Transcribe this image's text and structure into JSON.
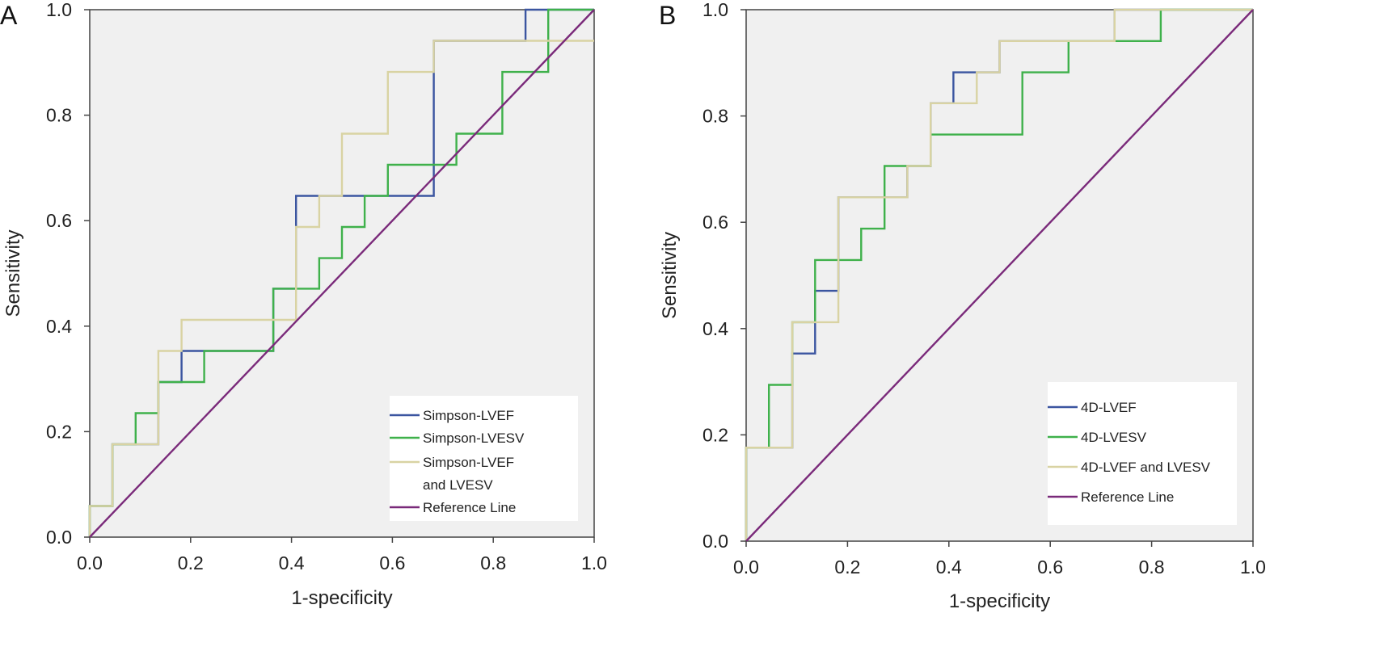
{
  "chart_data": [
    {
      "panel_label": "A",
      "type": "line",
      "xlabel": "1-specificity",
      "ylabel": "Sensitivity",
      "xlim": [
        0,
        1
      ],
      "ylim": [
        0,
        1
      ],
      "xticks": [
        "0.0",
        "0.2",
        "0.4",
        "0.6",
        "0.8",
        "1.0"
      ],
      "yticks": [
        "0.0",
        "0.2",
        "0.4",
        "0.6",
        "0.8",
        "1.0"
      ],
      "grid": false,
      "legend_position": "bottom-right",
      "series": [
        {
          "name": "Simpson-LVEF",
          "color": "#3b55a0",
          "x": [
            0,
            0,
            0.045,
            0.045,
            0.136,
            0.136,
            0.182,
            0.182,
            0.364,
            0.364,
            0.409,
            0.409,
            0.682,
            0.682,
            0.864,
            0.864,
            1
          ],
          "y": [
            0,
            0.059,
            0.059,
            0.176,
            0.176,
            0.294,
            0.294,
            0.353,
            0.353,
            0.471,
            0.471,
            0.647,
            0.647,
            0.941,
            0.941,
            1,
            1
          ]
        },
        {
          "name": "Simpson-LVESV",
          "color": "#3fb14b",
          "x": [
            0,
            0,
            0.045,
            0.045,
            0.091,
            0.091,
            0.136,
            0.136,
            0.227,
            0.227,
            0.364,
            0.364,
            0.455,
            0.455,
            0.5,
            0.5,
            0.545,
            0.545,
            0.591,
            0.591,
            0.727,
            0.727,
            0.818,
            0.818,
            0.909,
            0.909,
            1
          ],
          "y": [
            0,
            0.059,
            0.059,
            0.176,
            0.176,
            0.235,
            0.235,
            0.294,
            0.294,
            0.353,
            0.353,
            0.471,
            0.471,
            0.529,
            0.529,
            0.588,
            0.588,
            0.647,
            0.647,
            0.706,
            0.706,
            0.765,
            0.765,
            0.882,
            0.882,
            1,
            1
          ]
        },
        {
          "name": "Simpson-LVEF and LVESV",
          "color": "#d9d3a3",
          "x": [
            0,
            0,
            0.045,
            0.045,
            0.136,
            0.136,
            0.182,
            0.182,
            0.409,
            0.409,
            0.455,
            0.455,
            0.5,
            0.5,
            0.591,
            0.591,
            0.682,
            0.682,
            1
          ],
          "y": [
            0,
            0.059,
            0.059,
            0.176,
            0.176,
            0.353,
            0.353,
            0.412,
            0.412,
            0.588,
            0.588,
            0.647,
            0.647,
            0.765,
            0.765,
            0.882,
            0.882,
            0.941,
            0.941
          ]
        },
        {
          "name": "Reference Line",
          "color": "#7a2a7a",
          "x": [
            0,
            1
          ],
          "y": [
            0,
            1
          ]
        }
      ],
      "legend": [
        "Simpson-LVEF",
        "Simpson-LVESV",
        "Simpson-LVEF",
        "and LVESV",
        "Reference Line"
      ]
    },
    {
      "panel_label": "B",
      "type": "line",
      "xlabel": "1-specificity",
      "ylabel": "Sensitivity",
      "xlim": [
        0,
        1
      ],
      "ylim": [
        0,
        1
      ],
      "xticks": [
        "0.0",
        "0.2",
        "0.4",
        "0.6",
        "0.8",
        "1.0"
      ],
      "yticks": [
        "0.0",
        "0.2",
        "0.4",
        "0.6",
        "0.8",
        "1.0"
      ],
      "grid": false,
      "legend_position": "bottom-right",
      "series": [
        {
          "name": "4D-LVEF",
          "color": "#3b55a0",
          "x": [
            0,
            0,
            0.091,
            0.091,
            0.136,
            0.136,
            0.182,
            0.182,
            0.318,
            0.318,
            0.364,
            0.364,
            0.409,
            0.409,
            0.455,
            0.455,
            0.5,
            0.5,
            0.727,
            0.727,
            1
          ],
          "y": [
            0,
            0.176,
            0.176,
            0.353,
            0.353,
            0.471,
            0.471,
            0.647,
            0.647,
            0.706,
            0.706,
            0.824,
            0.824,
            0.882,
            0.882,
            0.882,
            0.882,
            0.941,
            0.941,
            1,
            1
          ]
        },
        {
          "name": "4D-LVESV",
          "color": "#3fb14b",
          "x": [
            0,
            0,
            0.045,
            0.045,
            0.091,
            0.091,
            0.136,
            0.136,
            0.227,
            0.227,
            0.273,
            0.273,
            0.364,
            0.364,
            0.545,
            0.545,
            0.636,
            0.636,
            0.818,
            0.818,
            1
          ],
          "y": [
            0,
            0.176,
            0.176,
            0.294,
            0.294,
            0.412,
            0.412,
            0.529,
            0.529,
            0.588,
            0.588,
            0.706,
            0.706,
            0.765,
            0.765,
            0.882,
            0.882,
            0.941,
            0.941,
            1,
            1
          ]
        },
        {
          "name": "4D-LVEF and LVESV",
          "color": "#d9d3a3",
          "x": [
            0,
            0,
            0.091,
            0.091,
            0.182,
            0.182,
            0.318,
            0.318,
            0.364,
            0.364,
            0.455,
            0.455,
            0.5,
            0.5,
            0.727,
            0.727,
            1
          ],
          "y": [
            0,
            0.176,
            0.176,
            0.412,
            0.412,
            0.647,
            0.647,
            0.706,
            0.706,
            0.824,
            0.824,
            0.882,
            0.882,
            0.941,
            0.941,
            1,
            1
          ]
        },
        {
          "name": "Reference Line",
          "color": "#7a2a7a",
          "x": [
            0,
            1
          ],
          "y": [
            0,
            1
          ]
        }
      ],
      "legend": [
        "4D-LVEF",
        "4D-LVESV",
        "4D-LVEF and LVESV",
        "Reference Line"
      ]
    }
  ]
}
